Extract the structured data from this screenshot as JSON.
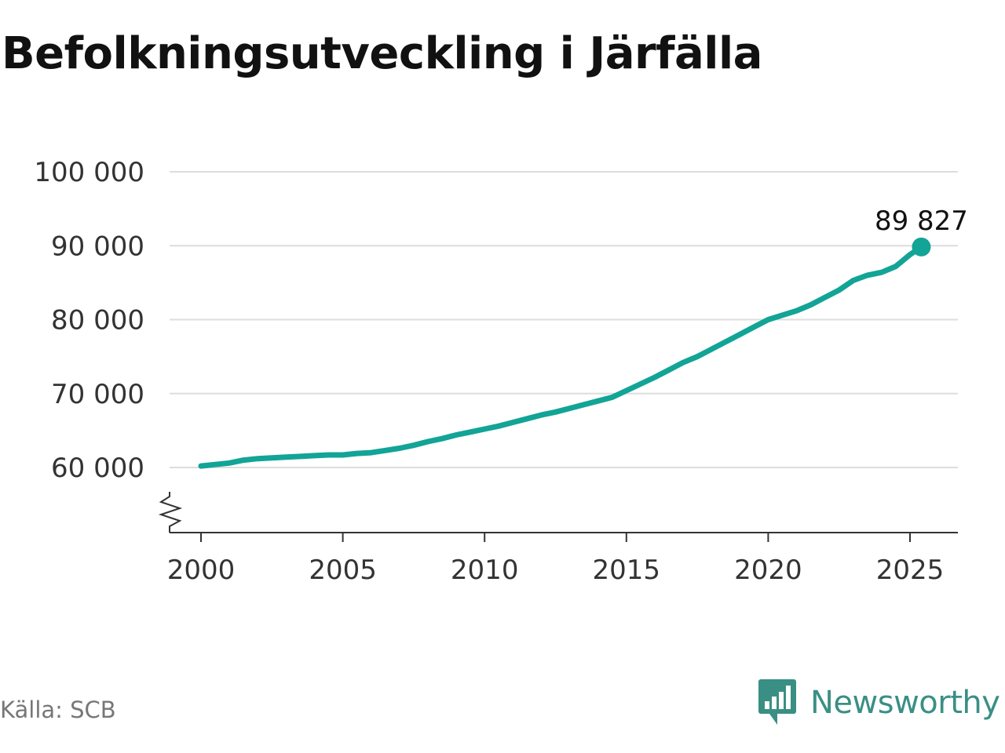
{
  "title": "Befolkningsutveckling i Järfälla",
  "source": "Källa: SCB",
  "brand": "Newsworthy",
  "colors": {
    "line": "#12a496",
    "grid": "#dddddd",
    "axis": "#333333",
    "brand": "#3a8f84"
  },
  "chart_data": {
    "type": "line",
    "title": "Befolkningsutveckling i Järfälla",
    "xlabel": "",
    "ylabel": "",
    "xlim": [
      1999.8,
      2026.6
    ],
    "ylim": [
      51000,
      100000
    ],
    "y_axis_break": true,
    "grid": "horizontal",
    "x_ticks": [
      2000,
      2005,
      2010,
      2015,
      2020,
      2025
    ],
    "x_tick_labels": [
      "2000",
      "2005",
      "2010",
      "2015",
      "2020",
      "2025"
    ],
    "y_ticks": [
      60000,
      70000,
      80000,
      90000,
      100000
    ],
    "y_tick_labels": [
      "60 000",
      "70 000",
      "80 000",
      "90 000",
      "100 000"
    ],
    "end_label": "89 827",
    "series": [
      {
        "x": [
          2000.0,
          2000.5,
          2001.0,
          2001.5,
          2002.0,
          2002.5,
          2003.0,
          2003.5,
          2004.0,
          2004.5,
          2005.0,
          2005.5,
          2006.0,
          2006.5,
          2007.0,
          2007.5,
          2008.0,
          2008.5,
          2009.0,
          2009.5,
          2010.0,
          2010.5,
          2011.0,
          2011.5,
          2012.0,
          2012.5,
          2013.0,
          2013.5,
          2014.0,
          2014.5,
          2015.0,
          2015.5,
          2016.0,
          2016.5,
          2017.0,
          2017.5,
          2018.0,
          2018.5,
          2019.0,
          2019.5,
          2020.0,
          2020.5,
          2021.0,
          2021.5,
          2022.0,
          2022.5,
          2023.0,
          2023.5,
          2024.0,
          2024.5,
          2025.0,
          2025.4
        ],
        "values": [
          60200,
          60400,
          60600,
          61000,
          61200,
          61300,
          61400,
          61500,
          61600,
          61700,
          61700,
          61900,
          62000,
          62300,
          62600,
          63000,
          63500,
          63900,
          64400,
          64800,
          65200,
          65600,
          66100,
          66600,
          67100,
          67500,
          68000,
          68500,
          69000,
          69500,
          70400,
          71300,
          72200,
          73200,
          74200,
          75000,
          76000,
          77000,
          78000,
          79000,
          80000,
          80600,
          81200,
          82000,
          83000,
          84000,
          85300,
          86000,
          86400,
          87200,
          88800,
          89827
        ]
      }
    ]
  }
}
